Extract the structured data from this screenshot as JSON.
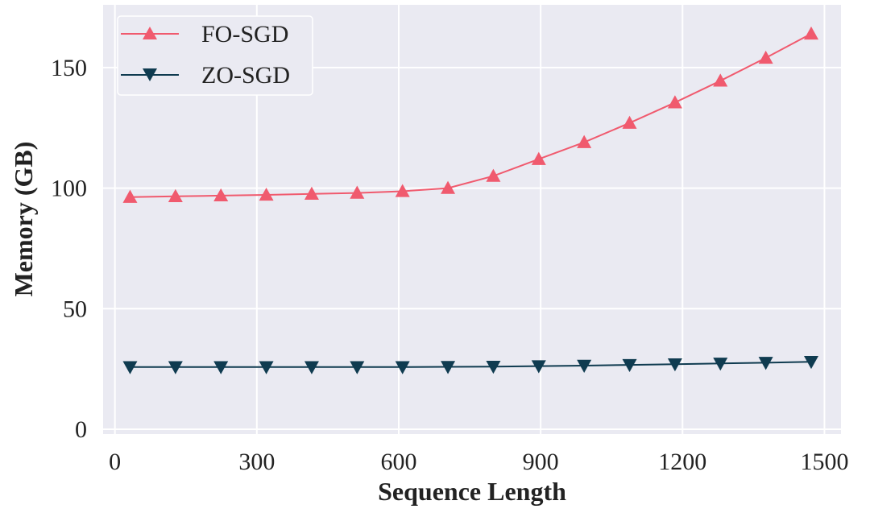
{
  "chart_data": {
    "type": "line",
    "xlabel": "Sequence Length",
    "ylabel": "Memory (GB)",
    "xlim": [
      -25,
      1535
    ],
    "ylim": [
      -2,
      176
    ],
    "xticks": [
      0,
      300,
      600,
      900,
      1200,
      1500
    ],
    "xtick_labels": [
      "0",
      "300",
      "600",
      "900",
      "1200",
      "1500"
    ],
    "yticks": [
      0,
      50,
      100,
      150
    ],
    "ytick_labels": [
      "0",
      "50",
      "100",
      "150"
    ],
    "grid": true,
    "legend_position": "top-left",
    "x": [
      32,
      128,
      224,
      320,
      416,
      512,
      608,
      704,
      800,
      896,
      992,
      1088,
      1184,
      1280,
      1376,
      1472
    ],
    "series": [
      {
        "name": "FO-SGD",
        "color": "#f05a6e",
        "marker": "triangle-up",
        "values": [
          96.3,
          96.6,
          96.9,
          97.2,
          97.6,
          98.0,
          98.7,
          100.0,
          105.0,
          112.0,
          119.0,
          127.0,
          135.5,
          144.5,
          154.0,
          164.0
        ]
      },
      {
        "name": "ZO-SGD",
        "color": "#0f3b50",
        "marker": "triangle-down",
        "values": [
          25.8,
          25.8,
          25.8,
          25.8,
          25.8,
          25.8,
          25.8,
          25.9,
          26.0,
          26.2,
          26.4,
          26.7,
          27.0,
          27.3,
          27.6,
          28.0
        ]
      }
    ]
  }
}
